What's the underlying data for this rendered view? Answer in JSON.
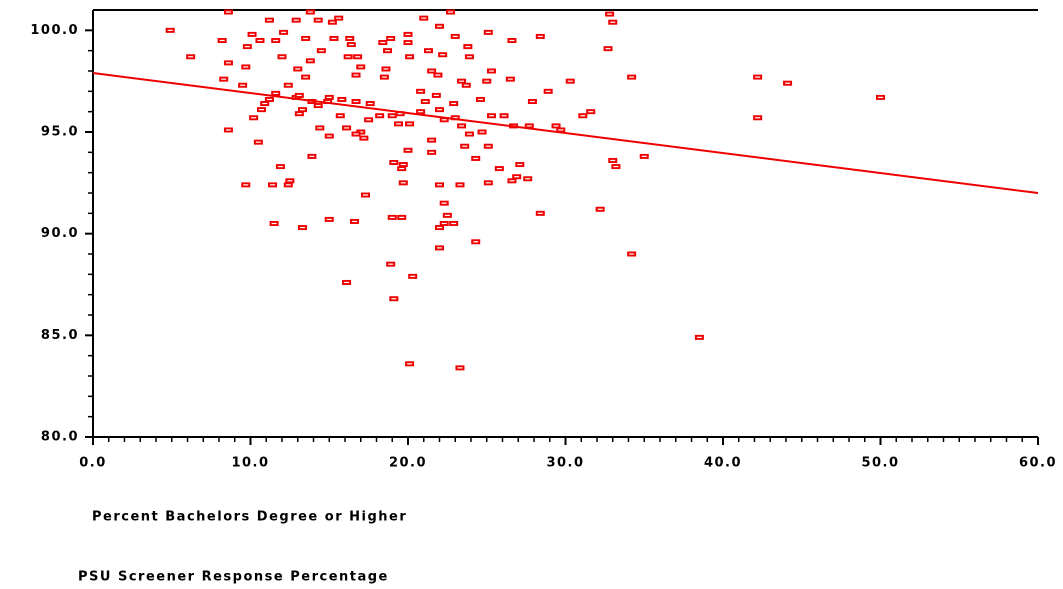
{
  "chart_data": {
    "type": "scatter",
    "x_label": "Percent Bachelors Degree or Higher",
    "y_label": "PSU Screener Response Percentage",
    "xlim": [
      0,
      60
    ],
    "ylim": [
      80,
      101
    ],
    "xticks": [
      {
        "value": 0,
        "label": "0.0"
      },
      {
        "value": 10,
        "label": "10.0"
      },
      {
        "value": 20,
        "label": "20.0"
      },
      {
        "value": 30,
        "label": "30.0"
      },
      {
        "value": 40,
        "label": "40.0"
      },
      {
        "value": 50,
        "label": "50.0"
      },
      {
        "value": 60,
        "label": "60.0"
      }
    ],
    "yticks": [
      {
        "value": 80,
        "label": "80.0"
      },
      {
        "value": 85,
        "label": "85.0"
      },
      {
        "value": 90,
        "label": "90.0"
      },
      {
        "value": 95,
        "label": "95.0"
      },
      {
        "value": 100,
        "label": "100.0"
      }
    ],
    "color": "#ee0000",
    "x": [
      4.9,
      6.2,
      8.6,
      8.2,
      8.6,
      8.3,
      9.5,
      9.7,
      10.1,
      9.8,
      10.6,
      11.2,
      11.6,
      12.0,
      12.1,
      12.9,
      13.8,
      14.3,
      15.2,
      15.6,
      13.5,
      13.8,
      13.0,
      12.9,
      13.5,
      14.5,
      15.3,
      16.3,
      16.4,
      16.2,
      16.8,
      17.0,
      16.7,
      18.4,
      18.9,
      18.7,
      18.6,
      20.0,
      20.0,
      20.1,
      21.0,
      21.3,
      21.5,
      21.9,
      22.0,
      22.2,
      22.7,
      23.0,
      23.8,
      23.9,
      25.1,
      26.6,
      25.0,
      25.3,
      26.5,
      28.4,
      30.3,
      28.9,
      34.2,
      32.8,
      33.0,
      32.7,
      42.2,
      44.1,
      50.0,
      42.2,
      31.6,
      31.1,
      29.4,
      29.7,
      27.9,
      27.7,
      26.7,
      26.1,
      25.3,
      33.0,
      33.2,
      35.0,
      34.2,
      38.5,
      32.2,
      28.4,
      27.6,
      26.9,
      26.6,
      25.8,
      27.1,
      25.1,
      24.3,
      23.4,
      23.9,
      24.7,
      23.0,
      22.3,
      22.0,
      21.1,
      20.8,
      20.1,
      19.5,
      19.0,
      18.2,
      17.6,
      17.5,
      17.2,
      17.0,
      16.1,
      15.8,
      15.0,
      14.9,
      14.4,
      14.3,
      13.9,
      13.3,
      13.1,
      13.1,
      12.4,
      11.6,
      11.2,
      10.9,
      10.7,
      10.2,
      8.6,
      10.5,
      11.9,
      13.9,
      15.0,
      16.7,
      19.1,
      19.6,
      19.7,
      19.7,
      20.0,
      21.5,
      22.0,
      23.3,
      23.6,
      25.1,
      22.3,
      22.5,
      22.3,
      22.9,
      22.0,
      22.0,
      24.3,
      19.0,
      19.6,
      15.0,
      16.6,
      11.5,
      13.3,
      9.7,
      11.4,
      12.5,
      12.4,
      17.3,
      18.9,
      20.3,
      19.1,
      16.1,
      20.1,
      23.3,
      21.5,
      15.7,
      16.7,
      18.5,
      19.4,
      20.8,
      21.8,
      22.9,
      23.4,
      24.6,
      23.7
    ],
    "y": [
      100.0,
      98.7,
      100.9,
      99.5,
      98.4,
      97.6,
      97.3,
      98.2,
      99.8,
      99.2,
      99.5,
      100.5,
      99.5,
      98.7,
      99.9,
      100.5,
      100.9,
      100.5,
      100.4,
      100.6,
      99.6,
      98.5,
      98.1,
      96.7,
      97.7,
      99.0,
      99.6,
      99.6,
      99.3,
      98.7,
      98.7,
      98.2,
      97.8,
      99.4,
      99.6,
      99.0,
      98.1,
      99.8,
      99.4,
      98.7,
      100.6,
      99.0,
      98.0,
      97.8,
      100.2,
      98.8,
      100.9,
      99.7,
      99.2,
      98.7,
      99.9,
      99.5,
      97.5,
      98.0,
      97.6,
      99.7,
      97.5,
      97.0,
      97.7,
      100.8,
      100.4,
      99.1,
      97.7,
      97.4,
      96.7,
      95.7,
      96.0,
      95.8,
      95.3,
      95.1,
      96.5,
      95.3,
      95.3,
      95.8,
      95.8,
      93.6,
      93.3,
      93.8,
      89.0,
      84.9,
      91.2,
      91.0,
      92.7,
      92.8,
      92.6,
      93.2,
      93.4,
      94.3,
      93.7,
      95.3,
      94.9,
      95.0,
      95.7,
      95.6,
      96.1,
      96.5,
      96.0,
      95.4,
      95.9,
      95.8,
      95.8,
      96.4,
      95.6,
      94.7,
      95.0,
      95.2,
      96.6,
      96.7,
      96.5,
      95.2,
      96.3,
      96.5,
      96.1,
      95.9,
      96.8,
      97.3,
      96.9,
      96.6,
      96.4,
      96.1,
      95.7,
      95.1,
      94.5,
      93.3,
      93.8,
      94.8,
      94.9,
      93.5,
      93.2,
      93.4,
      92.5,
      94.1,
      94.0,
      92.4,
      92.4,
      94.3,
      92.5,
      91.5,
      90.9,
      90.5,
      90.5,
      90.3,
      89.3,
      89.6,
      90.8,
      90.8,
      90.7,
      90.6,
      90.5,
      90.3,
      92.4,
      92.4,
      92.6,
      92.4,
      91.9,
      88.5,
      87.9,
      86.8,
      87.6,
      83.6,
      83.4,
      94.6,
      95.8,
      96.5,
      97.7,
      95.4,
      97.0,
      96.8,
      96.4,
      97.5,
      96.6,
      97.3
    ],
    "fit_line": {
      "color": "#ee0000",
      "x": [
        0,
        60
      ],
      "y": [
        97.9,
        92.0
      ]
    }
  }
}
